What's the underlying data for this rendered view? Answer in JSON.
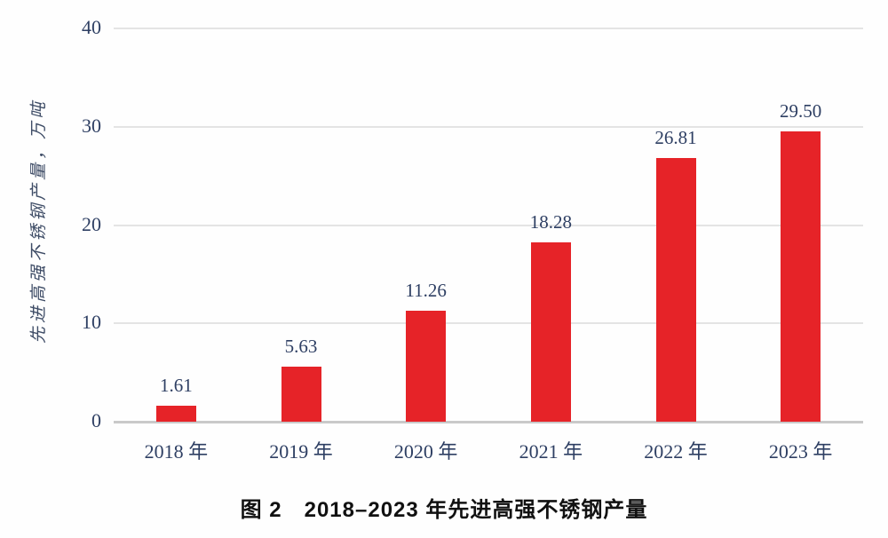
{
  "figure": {
    "caption": "图 2　2018–2023 年先进高强不锈钢产量",
    "y_axis_title": "先进高强不锈钢产量，万吨"
  },
  "chart_data": {
    "type": "bar",
    "title": "图 2　2018–2023 年先进高强不锈钢产量",
    "xlabel": "",
    "ylabel": "先进高强不锈钢产量，万吨",
    "categories": [
      "2018 年",
      "2019 年",
      "2020 年",
      "2021 年",
      "2022 年",
      "2023 年"
    ],
    "values": [
      1.61,
      5.63,
      11.26,
      18.28,
      26.81,
      29.5
    ],
    "value_labels": [
      "1.61",
      "5.63",
      "11.26",
      "18.28",
      "26.81",
      "29.50"
    ],
    "ylim": [
      0,
      40
    ],
    "yticks": [
      0,
      10,
      20,
      30,
      40
    ],
    "ytick_labels": [
      "0",
      "10",
      "20",
      "30",
      "40"
    ],
    "grid": true,
    "legend_position": "none",
    "bar_color": "#e62328",
    "text_color": "#2e3f63",
    "gridline_color": "#e4e4e4",
    "baseline_color": "#c9c9c9",
    "caption_color": "#111111"
  }
}
